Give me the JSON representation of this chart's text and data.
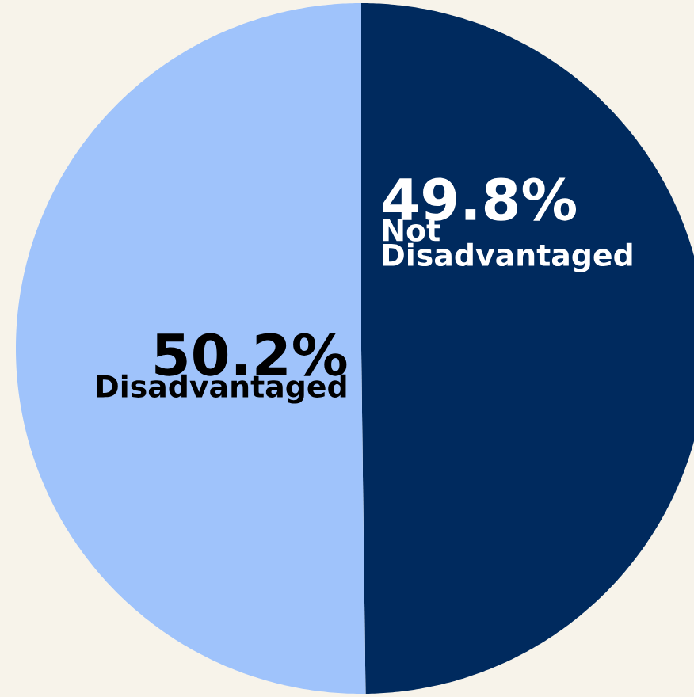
{
  "chart_data": {
    "type": "pie",
    "categories": [
      "Not Disadvantaged",
      "Disadvantaged"
    ],
    "values": [
      49.8,
      50.2
    ],
    "colors": [
      "#002a5e",
      "#9fc3fb"
    ],
    "value_labels": [
      "49.8%",
      "50.2%"
    ]
  }
}
